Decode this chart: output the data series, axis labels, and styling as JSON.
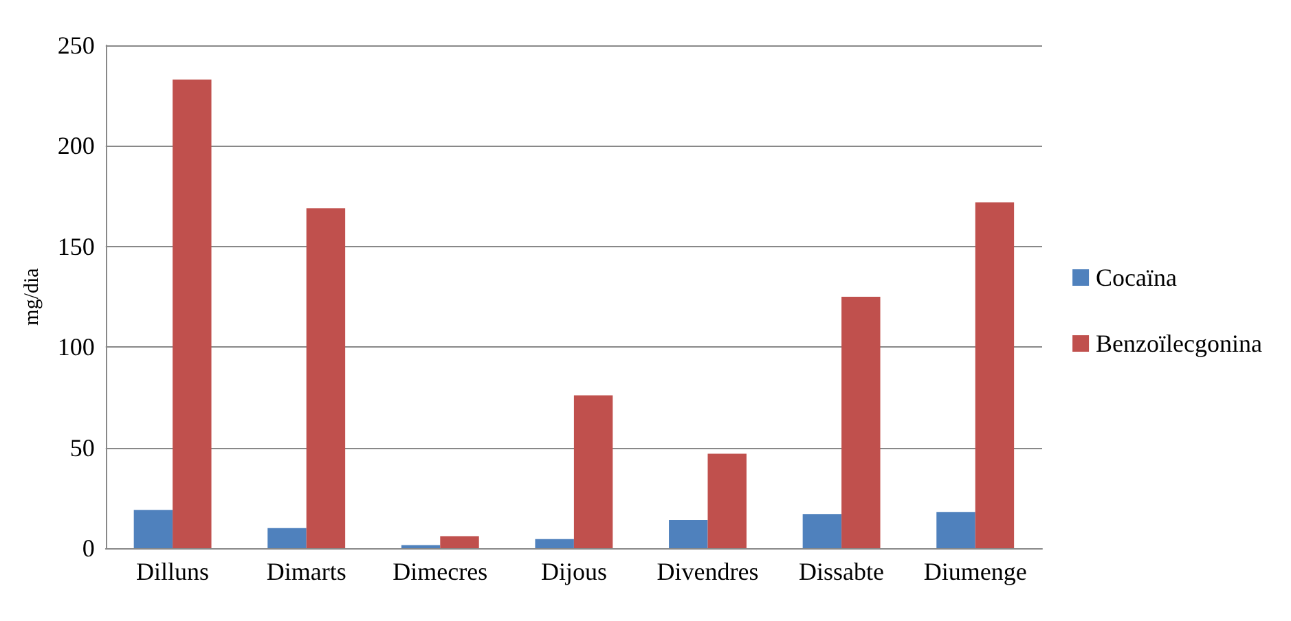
{
  "chart_data": {
    "type": "bar",
    "ylabel": "mg/dia",
    "categories": [
      "Dilluns",
      "Dimarts",
      "Dimecres",
      "Dijous",
      "Divendres",
      "Dissabte",
      "Diumenge"
    ],
    "series": [
      {
        "name": "Cocaïna",
        "color": "#4f81bd",
        "values": [
          19,
          10,
          1.5,
          4.5,
          14,
          17,
          18
        ]
      },
      {
        "name": "Benzoïlecgonina",
        "color": "#c0504d",
        "values": [
          233,
          169,
          6,
          76,
          47,
          125,
          172
        ]
      }
    ],
    "ylim": [
      0,
      250
    ],
    "yticks": [
      0,
      50,
      100,
      150,
      200,
      250
    ],
    "grid": "y",
    "legend": "right"
  }
}
